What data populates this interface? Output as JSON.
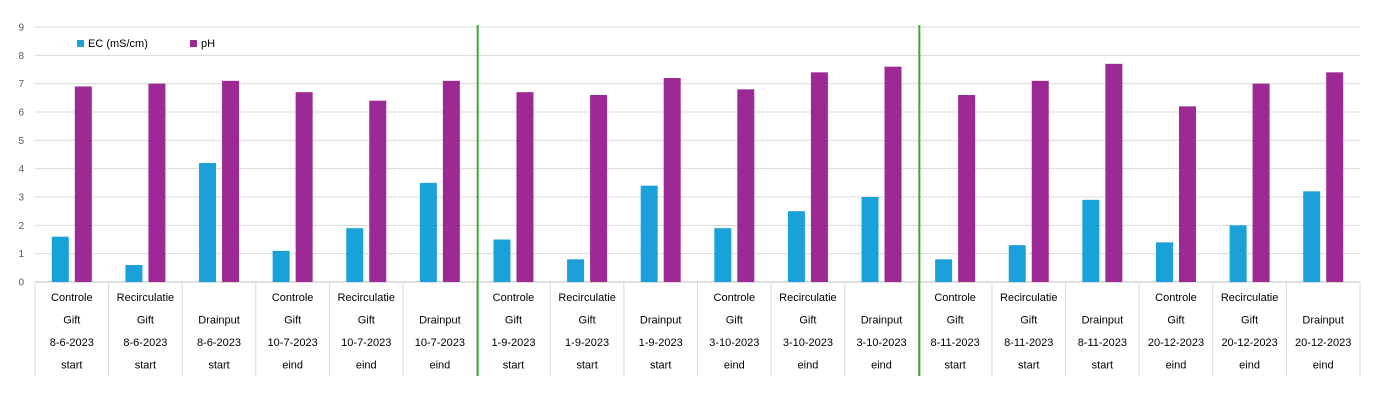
{
  "chart_data": {
    "type": "bar",
    "ylim": [
      0,
      9
    ],
    "yticks": [
      0,
      1,
      2,
      3,
      4,
      5,
      6,
      7,
      8,
      9
    ],
    "grid": true,
    "legend_position": "top-left",
    "categories": [
      [
        "Controle",
        "Gift",
        "8-6-2023",
        "start"
      ],
      [
        "Recirculatie",
        "Gift",
        "8-6-2023",
        "start"
      ],
      [
        "",
        "Drainput",
        "8-6-2023",
        "start"
      ],
      [
        "Controle",
        "Gift",
        "10-7-2023",
        "eind"
      ],
      [
        "Recirculatie",
        "Gift",
        "10-7-2023",
        "eind"
      ],
      [
        "",
        "Drainput",
        "10-7-2023",
        "eind"
      ],
      [
        "Controle",
        "Gift",
        "1-9-2023",
        "start"
      ],
      [
        "Recirculatie",
        "Gift",
        "1-9-2023",
        "start"
      ],
      [
        "",
        "Drainput",
        "1-9-2023",
        "start"
      ],
      [
        "Controle",
        "Gift",
        "3-10-2023",
        "eind"
      ],
      [
        "Recirculatie",
        "Gift",
        "3-10-2023",
        "eind"
      ],
      [
        "",
        "Drainput",
        "3-10-2023",
        "eind"
      ],
      [
        "Controle",
        "Gift",
        "8-11-2023",
        "start"
      ],
      [
        "Recirculatie",
        "Gift",
        "8-11-2023",
        "start"
      ],
      [
        "",
        "Drainput",
        "8-11-2023",
        "start"
      ],
      [
        "Controle",
        "Gift",
        "20-12-2023",
        "eind"
      ],
      [
        "Recirculatie",
        "Gift",
        "20-12-2023",
        "eind"
      ],
      [
        "",
        "Drainput",
        "20-12-2023",
        "eind"
      ]
    ],
    "series": [
      {
        "name": "EC (mS/cm)",
        "color": "#1ba1d9",
        "values": [
          1.6,
          0.6,
          4.2,
          1.1,
          1.9,
          3.5,
          1.5,
          0.8,
          3.4,
          1.9,
          2.5,
          3.0,
          0.8,
          1.3,
          2.9,
          1.4,
          2.0,
          3.2
        ]
      },
      {
        "name": "pH",
        "color": "#9d2a94",
        "values": [
          6.9,
          7.0,
          7.1,
          6.7,
          6.4,
          7.1,
          6.7,
          6.6,
          7.2,
          6.8,
          7.4,
          7.6,
          6.6,
          7.1,
          7.7,
          6.2,
          7.0,
          7.4
        ]
      }
    ],
    "separator_color": "#3aaa35",
    "separators_after_category": [
      6,
      12
    ]
  }
}
